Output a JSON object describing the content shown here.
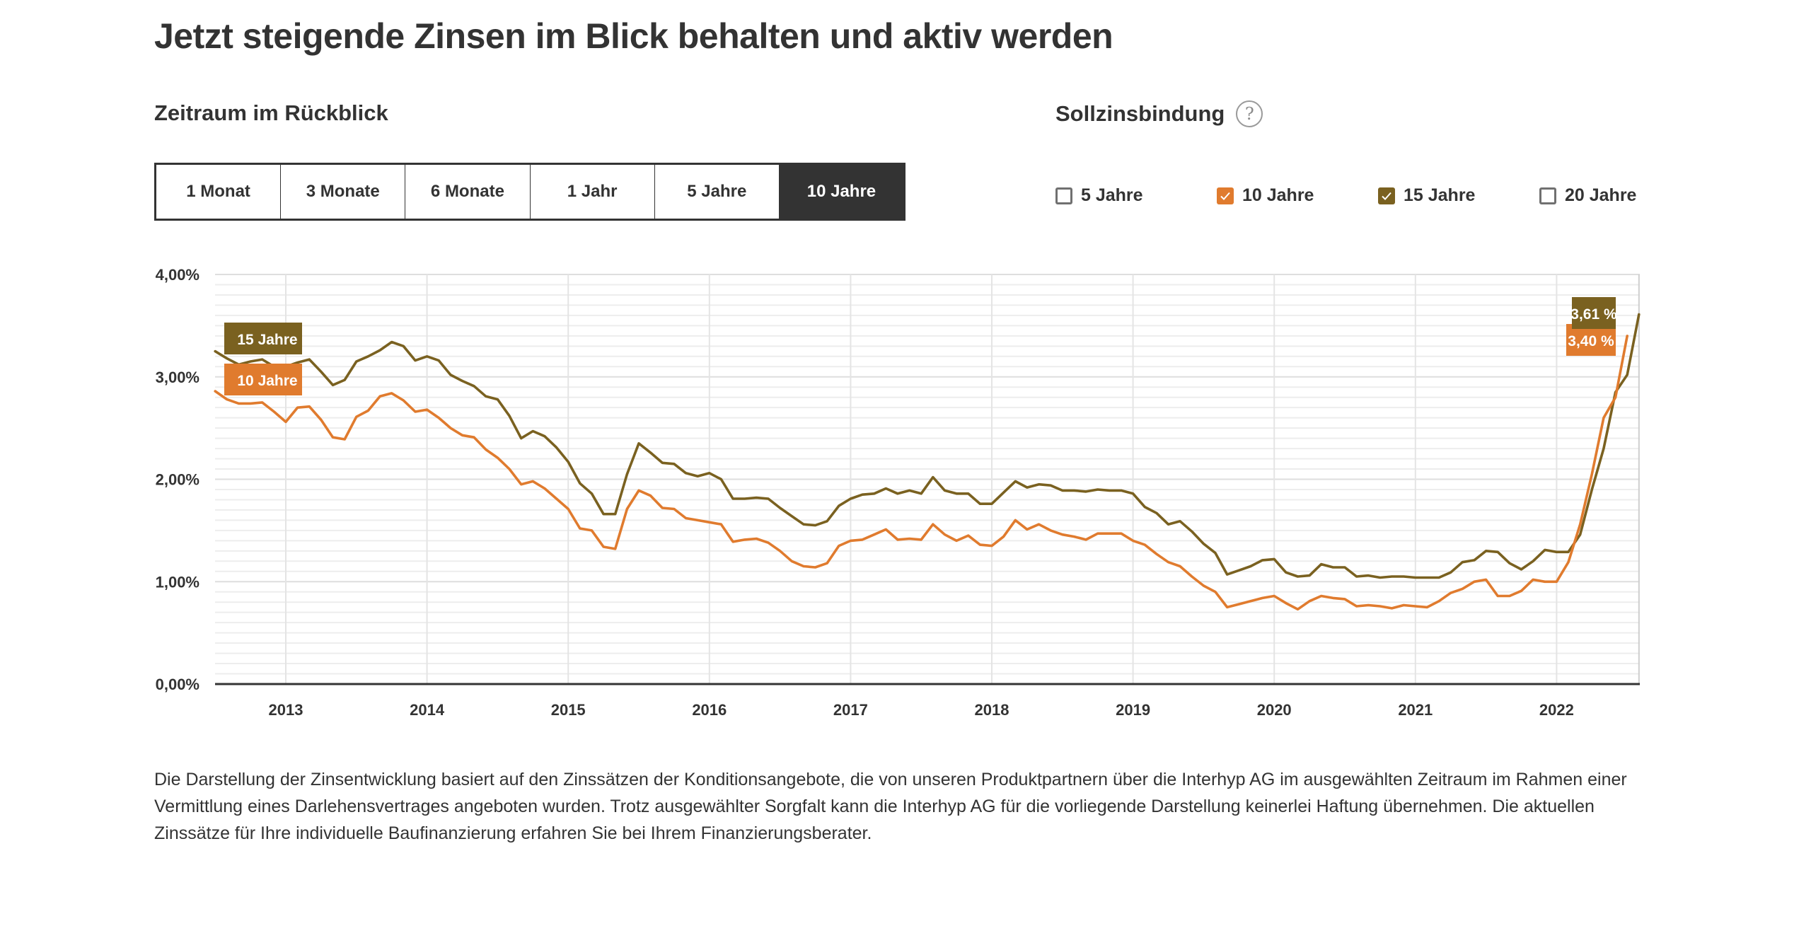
{
  "header": {
    "title": "Jetzt steigende Zinsen im Blick behalten und aktiv werden"
  },
  "range": {
    "label": "Zeitraum im Rückblick",
    "tabs": [
      {
        "label": "1 Monat",
        "active": false
      },
      {
        "label": "3 Monate",
        "active": false
      },
      {
        "label": "6 Monate",
        "active": false
      },
      {
        "label": "1 Jahr",
        "active": false
      },
      {
        "label": "5 Jahre",
        "active": false
      },
      {
        "label": "10 Jahre",
        "active": true
      }
    ]
  },
  "term": {
    "label": "Sollzinsbindung",
    "help_icon": "question-circle-icon",
    "options": [
      {
        "label": "5 Jahre",
        "checked": false,
        "color": "#707070"
      },
      {
        "label": "10 Jahre",
        "checked": true,
        "color": "#E07B2E"
      },
      {
        "label": "15 Jahre",
        "checked": true,
        "color": "#7A6120"
      },
      {
        "label": "20 Jahre",
        "checked": false,
        "color": "#707070"
      }
    ]
  },
  "colors": {
    "text": "#333333",
    "active_tab": "#333333",
    "series_10": "#E07B2E",
    "series_15": "#7A6120",
    "grid": "#E8E8E8"
  },
  "chart_data": {
    "type": "line",
    "title": "",
    "xlabel": "",
    "ylabel": "",
    "x_start": "2012-07",
    "x_end": "2022-06",
    "x_frequency": "monthly",
    "x_range": [
      2012.5,
      2022.6
    ],
    "ylim": [
      0,
      4
    ],
    "y_ticks": [
      "0,00%",
      "1,00%",
      "2,00%",
      "3,00%",
      "4,00%"
    ],
    "y_tick_values": [
      0,
      1,
      2,
      3,
      4
    ],
    "x_ticks": [
      "2013",
      "2014",
      "2015",
      "2016",
      "2017",
      "2018",
      "2019",
      "2020",
      "2021",
      "2022"
    ],
    "x_tick_values": [
      2013,
      2014,
      2015,
      2016,
      2017,
      2018,
      2019,
      2020,
      2021,
      2022
    ],
    "grid": true,
    "minor_grid_step": 0.1,
    "series": [
      {
        "name": "15 Jahre",
        "color": "#7A6120",
        "end_label": "3,61 %",
        "values": [
          3.25,
          3.18,
          3.12,
          3.15,
          3.17,
          3.1,
          3.1,
          3.14,
          3.17,
          3.05,
          2.92,
          2.97,
          3.15,
          3.2,
          3.26,
          3.34,
          3.3,
          3.16,
          3.2,
          3.16,
          3.02,
          2.96,
          2.91,
          2.81,
          2.78,
          2.62,
          2.4,
          2.47,
          2.42,
          2.31,
          2.17,
          1.96,
          1.86,
          1.66,
          1.66,
          2.05,
          2.35,
          2.26,
          2.16,
          2.15,
          2.06,
          2.03,
          2.06,
          2.0,
          1.81,
          1.81,
          1.82,
          1.81,
          1.72,
          1.64,
          1.56,
          1.55,
          1.59,
          1.74,
          1.81,
          1.85,
          1.86,
          1.91,
          1.86,
          1.89,
          1.86,
          2.02,
          1.89,
          1.86,
          1.86,
          1.76,
          1.76,
          1.87,
          1.98,
          1.92,
          1.95,
          1.94,
          1.89,
          1.89,
          1.88,
          1.9,
          1.89,
          1.89,
          1.86,
          1.73,
          1.67,
          1.56,
          1.59,
          1.49,
          1.37,
          1.28,
          1.07,
          1.11,
          1.15,
          1.21,
          1.22,
          1.09,
          1.05,
          1.06,
          1.17,
          1.14,
          1.14,
          1.05,
          1.06,
          1.04,
          1.05,
          1.05,
          1.04,
          1.04,
          1.04,
          1.09,
          1.19,
          1.21,
          1.3,
          1.29,
          1.18,
          1.12,
          1.2,
          1.31,
          1.29,
          1.29,
          1.46,
          1.9,
          2.3,
          2.85,
          3.02,
          3.61
        ]
      },
      {
        "name": "10 Jahre",
        "color": "#E07B2E",
        "end_label": "3,40 %",
        "values": [
          2.86,
          2.78,
          2.74,
          2.74,
          2.75,
          2.66,
          2.56,
          2.7,
          2.71,
          2.58,
          2.41,
          2.39,
          2.61,
          2.67,
          2.81,
          2.84,
          2.77,
          2.66,
          2.68,
          2.6,
          2.5,
          2.43,
          2.41,
          2.29,
          2.21,
          2.1,
          1.95,
          1.98,
          1.91,
          1.81,
          1.71,
          1.52,
          1.5,
          1.34,
          1.32,
          1.71,
          1.89,
          1.84,
          1.72,
          1.71,
          1.62,
          1.6,
          1.58,
          1.56,
          1.39,
          1.41,
          1.42,
          1.38,
          1.3,
          1.2,
          1.15,
          1.14,
          1.18,
          1.35,
          1.4,
          1.41,
          1.46,
          1.51,
          1.41,
          1.42,
          1.41,
          1.56,
          1.46,
          1.4,
          1.45,
          1.36,
          1.35,
          1.44,
          1.6,
          1.51,
          1.56,
          1.5,
          1.46,
          1.44,
          1.41,
          1.47,
          1.47,
          1.47,
          1.4,
          1.36,
          1.27,
          1.19,
          1.15,
          1.05,
          0.96,
          0.9,
          0.75,
          0.78,
          0.81,
          0.84,
          0.86,
          0.79,
          0.73,
          0.81,
          0.86,
          0.84,
          0.83,
          0.76,
          0.77,
          0.76,
          0.74,
          0.77,
          0.76,
          0.75,
          0.81,
          0.89,
          0.93,
          1.0,
          1.02,
          0.86,
          0.86,
          0.91,
          1.02,
          1.0,
          1.0,
          1.19,
          1.56,
          2.05,
          2.6,
          2.8,
          3.4
        ]
      }
    ],
    "labels": [
      {
        "series": "15 Jahre",
        "position": "start"
      },
      {
        "series": "10 Jahre",
        "position": "start"
      }
    ]
  },
  "footer": {
    "text": "Die Darstellung der Zinsentwicklung basiert auf den Zinssätzen der Konditionsangebote, die von unseren Produktpartnern über die Interhyp AG im ausgewählten Zeitraum im Rahmen einer Vermittlung eines Darlehensvertrages angeboten wurden. Trotz ausgewählter Sorgfalt kann die Interhyp AG für die vorliegende Darstellung keinerlei Haftung übernehmen. Die aktuellen Zinssätze für Ihre individuelle Baufinanzierung erfahren Sie bei Ihrem Finanzierungsberater."
  }
}
